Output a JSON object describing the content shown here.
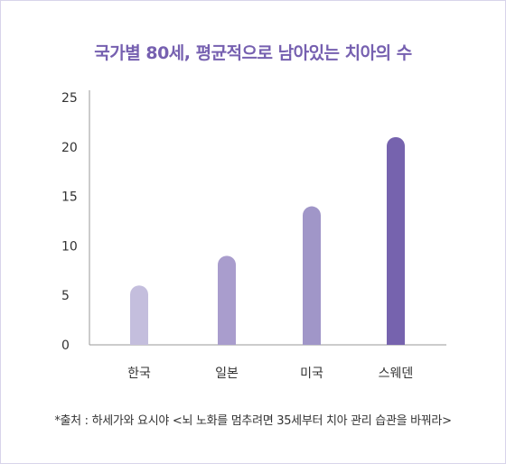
{
  "chart_data": {
    "type": "bar",
    "title": "국가별 80세, 평균적으로 남아있는 치아의 수",
    "categories": [
      "한국",
      "일본",
      "미국",
      "스웨덴"
    ],
    "values": [
      6,
      9,
      14,
      21
    ],
    "ylim": [
      0,
      25
    ],
    "yticks": [
      0,
      5,
      10,
      15,
      20,
      25
    ],
    "xlabel": "",
    "ylabel": "",
    "grid": false,
    "colors": [
      "#c4bedd",
      "#a99dcd",
      "#a096c8",
      "#7663ae"
    ]
  },
  "source": "*출처 : 하세가와 요시야 <뇌 노화를 멈추려면 35세부터 치아 관리 습관을 바꿔라>"
}
